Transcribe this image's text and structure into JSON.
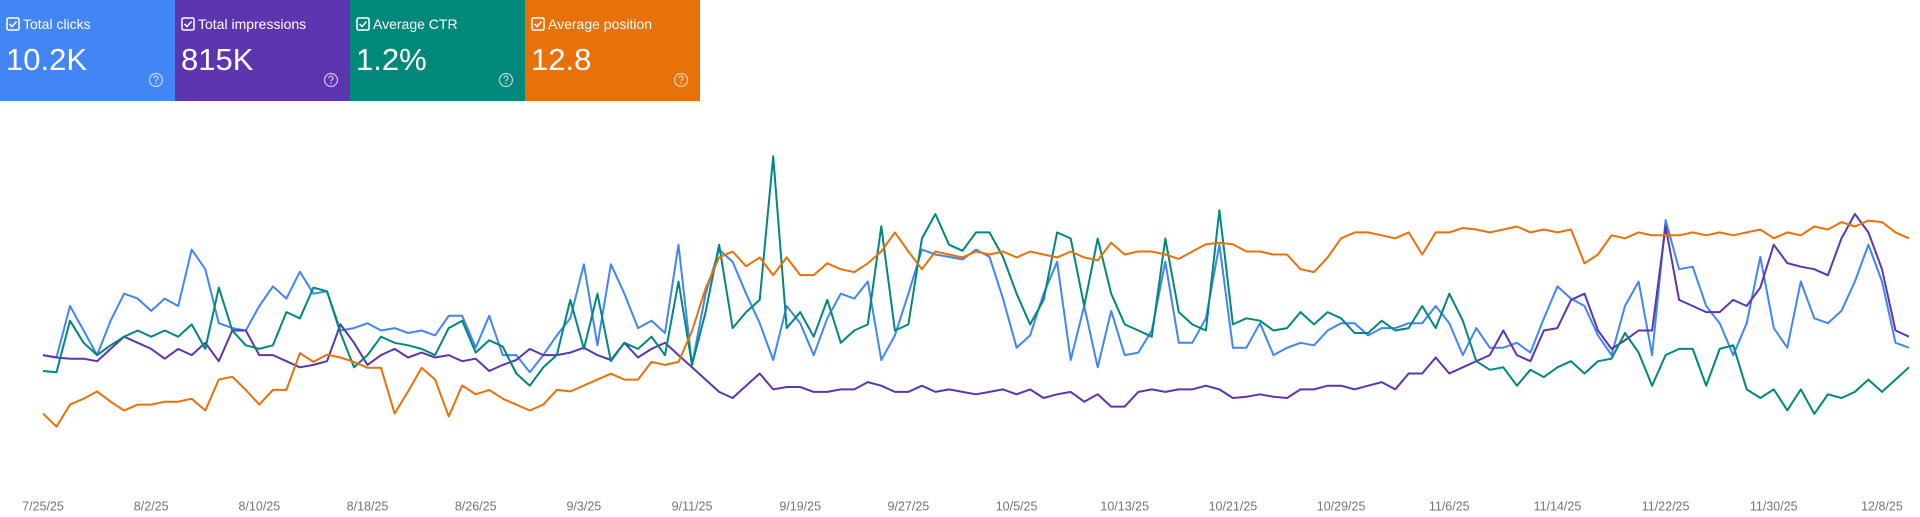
{
  "chart_data": {
    "type": "line",
    "categories": [
      "7/25/25",
      null,
      null,
      null,
      null,
      null,
      null,
      null,
      "8/2/25",
      null,
      null,
      null,
      null,
      null,
      null,
      null,
      "8/10/25",
      null,
      null,
      null,
      null,
      null,
      null,
      null,
      "8/18/25",
      null,
      null,
      null,
      null,
      null,
      null,
      null,
      "8/26/25",
      null,
      null,
      null,
      null,
      null,
      null,
      null,
      "9/3/25",
      null,
      null,
      null,
      null,
      null,
      null,
      null,
      "9/11/25",
      null,
      null,
      null,
      null,
      null,
      null,
      null,
      "9/19/25",
      null,
      null,
      null,
      null,
      null,
      null,
      null,
      "9/27/25",
      null,
      null,
      null,
      null,
      null,
      null,
      null,
      "10/5/25",
      null,
      null,
      null,
      null,
      null,
      null,
      null,
      "10/13/25",
      null,
      null,
      null,
      null,
      null,
      null,
      null,
      "10/21/25",
      null,
      null,
      null,
      null,
      null,
      null,
      null,
      "10/29/25",
      null,
      null,
      null,
      null,
      null,
      null,
      null,
      "11/6/25",
      null,
      null,
      null,
      null,
      null,
      null,
      null,
      "11/14/25",
      null,
      null,
      null,
      null,
      null,
      null,
      null,
      "11/22/25",
      null,
      null,
      null,
      null,
      null,
      null,
      null,
      "11/30/25",
      null,
      null,
      null,
      null,
      null,
      null,
      null,
      "12/8/25",
      null,
      null
    ],
    "series": [
      {
        "name": "Total clicks",
        "total": "10.2K",
        "color": "#4285f4",
        "card_color": "#4285f4",
        "ylim": [
          0,
          150
        ],
        "values": [
          55,
          54,
          75,
          65,
          55,
          69,
          80,
          78,
          73,
          78,
          75,
          98,
          90,
          68,
          66,
          65,
          75,
          83,
          78,
          89,
          80,
          81,
          65,
          66,
          68,
          65,
          66,
          64,
          65,
          63,
          71,
          71,
          58,
          71,
          55,
          55,
          48,
          55,
          63,
          70,
          92,
          59,
          92,
          80,
          66,
          69,
          64,
          100,
          51,
          80,
          98,
          93,
          80,
          68,
          53,
          75,
          68,
          55,
          70,
          80,
          78,
          85,
          53,
          63,
          80,
          98,
          96,
          95,
          94,
          98,
          95,
          78,
          58,
          63,
          80,
          93,
          53,
          75,
          50,
          73,
          55,
          56,
          65,
          93,
          60,
          60,
          70,
          100,
          58,
          58,
          68,
          55,
          58,
          60,
          59,
          65,
          68,
          68,
          63,
          66,
          66,
          68,
          68,
          75,
          68,
          55,
          66,
          58,
          58,
          60,
          56,
          70,
          83,
          78,
          75,
          63,
          55,
          75,
          85,
          55,
          110,
          90,
          91,
          75,
          68,
          55,
          68,
          95,
          66,
          58,
          85,
          70,
          68,
          73,
          85,
          100,
          85,
          60,
          58
        ]
      },
      {
        "name": "Total impressions",
        "total": "815K",
        "color": "#5e35b1",
        "card_color": "#5e35b1",
        "ylim": [
          0,
          18000
        ],
        "values": [
          6600,
          6480,
          6420,
          6420,
          6300,
          6900,
          7500,
          7200,
          6900,
          6420,
          6900,
          6600,
          7200,
          6300,
          7800,
          7800,
          6600,
          6600,
          6300,
          6000,
          6120,
          6300,
          8100,
          7200,
          6120,
          6600,
          6900,
          6480,
          6720,
          6480,
          6600,
          6300,
          6420,
          5820,
          6120,
          6360,
          6900,
          6600,
          6600,
          6720,
          6960,
          6600,
          6360,
          7200,
          6480,
          6900,
          7200,
          6600,
          6000,
          5400,
          4800,
          4500,
          5100,
          5700,
          4920,
          5040,
          5040,
          4800,
          4800,
          4920,
          4920,
          5280,
          5100,
          4800,
          4800,
          5100,
          4800,
          4920,
          4800,
          4680,
          4800,
          4920,
          4680,
          4920,
          4500,
          4680,
          4800,
          4320,
          4680,
          4080,
          4080,
          4800,
          4920,
          4800,
          4920,
          4920,
          5100,
          4920,
          4500,
          4560,
          4680,
          4560,
          4500,
          4920,
          4920,
          5100,
          5100,
          4920,
          5100,
          5280,
          4920,
          5700,
          5700,
          6480,
          5700,
          6000,
          6300,
          6600,
          7800,
          6600,
          6300,
          7800,
          7920,
          9300,
          9600,
          7800,
          6900,
          7320,
          7800,
          7800,
          12900,
          9300,
          9000,
          8700,
          8700,
          9300,
          9000,
          9900,
          12000,
          11100,
          10920,
          10800,
          10500,
          12300,
          13500,
          12600,
          10800,
          7800,
          7500
        ]
      },
      {
        "name": "Average CTR",
        "total": "1.2%",
        "color": "#00897b",
        "card_color": "#00897b",
        "ylim": [
          0,
          3
        ],
        "values": [
          0.97,
          0.96,
          1.38,
          1.2,
          1.1,
          1.18,
          1.25,
          1.3,
          1.25,
          1.3,
          1.25,
          1.35,
          1.15,
          1.65,
          1.3,
          1.18,
          1.15,
          1.18,
          1.45,
          1.4,
          1.65,
          1.62,
          1.28,
          1.0,
          1.1,
          1.25,
          1.2,
          1.18,
          1.15,
          1.1,
          1.32,
          1.38,
          1.12,
          1.22,
          1.17,
          0.95,
          0.85,
          1.0,
          1.1,
          1.55,
          1.15,
          1.6,
          1.05,
          1.2,
          1.15,
          1.25,
          1.1,
          1.7,
          1.02,
          1.45,
          2.0,
          1.32,
          1.45,
          1.55,
          2.72,
          1.32,
          1.45,
          1.25,
          1.55,
          1.2,
          1.3,
          1.35,
          2.15,
          1.3,
          1.35,
          2.05,
          2.25,
          2.0,
          1.95,
          2.1,
          2.1,
          1.9,
          1.6,
          1.35,
          1.55,
          2.1,
          2.05,
          1.5,
          2.05,
          1.6,
          1.35,
          1.3,
          1.25,
          2.05,
          1.45,
          1.35,
          1.3,
          2.28,
          1.35,
          1.4,
          1.38,
          1.3,
          1.32,
          1.45,
          1.35,
          1.45,
          1.4,
          1.28,
          1.28,
          1.38,
          1.3,
          1.32,
          1.5,
          1.32,
          1.6,
          1.38,
          1.05,
          0.98,
          1.0,
          0.85,
          0.98,
          0.92,
          1.0,
          1.05,
          0.95,
          1.05,
          1.07,
          1.28,
          1.12,
          0.85,
          1.1,
          1.15,
          1.15,
          0.85,
          1.15,
          1.18,
          0.82,
          0.75,
          0.82,
          0.65,
          0.82,
          0.62,
          0.78,
          0.75,
          0.8,
          0.9,
          0.8,
          0.9,
          1.0
        ]
      },
      {
        "name": "Average position",
        "total": "12.8",
        "color": "#e8710a",
        "card_color": "#e8710a",
        "ylim": [
          25,
          0
        ],
        "values": [
          19.8,
          20.7,
          19.2,
          18.8,
          18.3,
          19.0,
          19.6,
          19.2,
          19.2,
          19.0,
          19.0,
          18.8,
          19.6,
          17.5,
          17.3,
          18.2,
          19.2,
          18.2,
          18.2,
          15.7,
          16.3,
          15.8,
          16.0,
          16.3,
          16.7,
          16.7,
          19.8,
          18.3,
          16.7,
          17.5,
          20.0,
          17.9,
          18.5,
          18.2,
          18.8,
          19.2,
          19.6,
          19.2,
          18.2,
          18.3,
          17.9,
          17.5,
          17.1,
          17.5,
          17.5,
          16.3,
          16.5,
          16.3,
          14.2,
          11.3,
          9.2,
          8.8,
          9.8,
          9.2,
          10.4,
          9.2,
          10.4,
          10.4,
          9.6,
          10.0,
          10.2,
          9.6,
          8.8,
          7.5,
          8.8,
          10.0,
          8.8,
          9.0,
          9.2,
          8.8,
          9.0,
          8.8,
          9.2,
          8.8,
          9.0,
          9.2,
          8.8,
          9.2,
          9.4,
          8.2,
          9.0,
          8.8,
          8.8,
          9.0,
          9.3,
          8.8,
          8.3,
          8.2,
          8.3,
          8.8,
          8.8,
          9.0,
          9.0,
          10.0,
          10.2,
          9.2,
          7.9,
          7.5,
          7.5,
          7.7,
          7.9,
          7.5,
          9.0,
          7.5,
          7.5,
          7.2,
          7.3,
          7.5,
          7.3,
          7.1,
          7.5,
          7.3,
          7.5,
          7.3,
          9.6,
          9.0,
          7.7,
          7.9,
          7.5,
          7.7,
          7.7,
          7.7,
          7.5,
          7.7,
          7.5,
          7.7,
          7.5,
          7.3,
          7.9,
          7.5,
          7.7,
          7.1,
          7.3,
          6.8,
          7.1,
          6.7,
          6.8,
          7.5,
          7.9
        ]
      }
    ]
  }
}
